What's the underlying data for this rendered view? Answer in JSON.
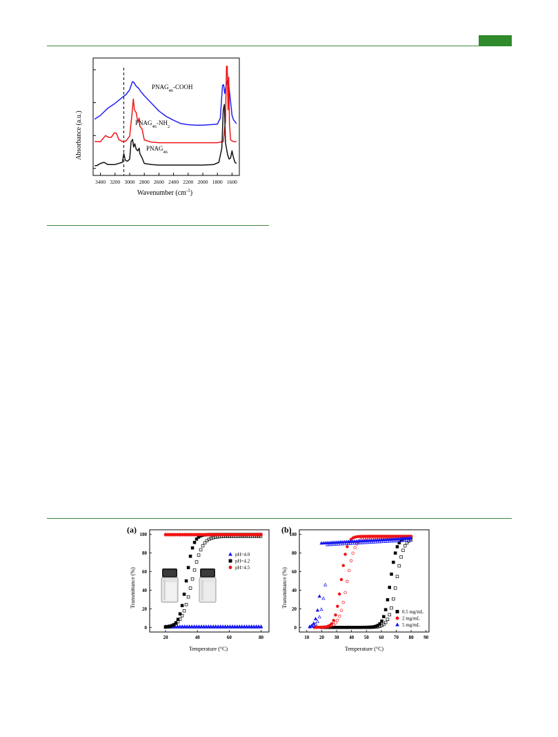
{
  "page": {
    "colors": {
      "rule": "#3e8a38",
      "tab": "#2f8a2c"
    }
  },
  "ftir": {
    "chart_data": {
      "type": "line",
      "xlabel": "Wavenumber (cm⁻¹)",
      "ylabel": "Absorbance (a.u.)",
      "xlim": [
        3500,
        1500
      ],
      "x_reversed": true,
      "xticks": [
        3400,
        3200,
        3000,
        2800,
        2600,
        2400,
        2200,
        2000,
        1800,
        1600
      ],
      "dashed_line_x": 3080,
      "series": [
        {
          "name": "PNAG46-COOH",
          "label_main": "PNAG",
          "label_sub": "46",
          "label_tail": "-COOH",
          "color": "#1f1ff5",
          "points": [
            [
              3480,
              0.93
            ],
            [
              3400,
              1.0
            ],
            [
              3300,
              1.13
            ],
            [
              3200,
              1.22
            ],
            [
              3100,
              1.33
            ],
            [
              3050,
              1.38
            ],
            [
              3000,
              1.47
            ],
            [
              2980,
              1.55
            ],
            [
              2960,
              1.62
            ],
            [
              2940,
              1.6
            ],
            [
              2920,
              1.55
            ],
            [
              2900,
              1.52
            ],
            [
              2880,
              1.5
            ],
            [
              2850,
              1.44
            ],
            [
              2800,
              1.36
            ],
            [
              2700,
              1.22
            ],
            [
              2600,
              1.08
            ],
            [
              2500,
              0.98
            ],
            [
              2400,
              0.91
            ],
            [
              2300,
              0.85
            ],
            [
              2200,
              0.83
            ],
            [
              2100,
              0.82
            ],
            [
              2000,
              0.82
            ],
            [
              1900,
              0.83
            ],
            [
              1800,
              0.84
            ],
            [
              1760,
              0.95
            ],
            [
              1730,
              1.55
            ],
            [
              1715,
              1.56
            ],
            [
              1700,
              1.4
            ],
            [
              1680,
              1.55
            ],
            [
              1660,
              1.65
            ],
            [
              1645,
              1.56
            ],
            [
              1620,
              1.25
            ],
            [
              1600,
              1.0
            ],
            [
              1580,
              0.92
            ],
            [
              1540,
              0.85
            ]
          ]
        },
        {
          "name": "PNAG46-NH2",
          "label_main": "PNAG",
          "label_sub": "46",
          "label_tail": "-NH",
          "label_sub2": "2",
          "color": "#f01414",
          "points": [
            [
              3480,
              0.52
            ],
            [
              3400,
              0.52
            ],
            [
              3330,
              0.63
            ],
            [
              3290,
              0.6
            ],
            [
              3250,
              0.6
            ],
            [
              3210,
              0.68
            ],
            [
              3180,
              0.67
            ],
            [
              3150,
              0.56
            ],
            [
              3100,
              0.52
            ],
            [
              3050,
              0.53
            ],
            [
              3000,
              0.62
            ],
            [
              2970,
              1.0
            ],
            [
              2950,
              1.3
            ],
            [
              2935,
              1.1
            ],
            [
              2910,
              1.05
            ],
            [
              2890,
              0.88
            ],
            [
              2870,
              0.95
            ],
            [
              2860,
              0.8
            ],
            [
              2830,
              0.75
            ],
            [
              2800,
              0.55
            ],
            [
              2700,
              0.51
            ],
            [
              2600,
              0.5
            ],
            [
              2400,
              0.5
            ],
            [
              2200,
              0.5
            ],
            [
              2000,
              0.5
            ],
            [
              1800,
              0.5
            ],
            [
              1720,
              0.52
            ],
            [
              1690,
              0.9
            ],
            [
              1675,
              1.9
            ],
            [
              1665,
              1.9
            ],
            [
              1655,
              1.1
            ],
            [
              1645,
              1.7
            ],
            [
              1635,
              0.85
            ],
            [
              1620,
              0.55
            ],
            [
              1580,
              0.52
            ],
            [
              1540,
              0.52
            ]
          ]
        },
        {
          "name": "PNAG46",
          "label_main": "PNAG",
          "label_sub": "46",
          "label_tail": "",
          "color": "#111111",
          "points": [
            [
              3480,
              0.08
            ],
            [
              3450,
              0.08
            ],
            [
              3400,
              0.12
            ],
            [
              3350,
              0.14
            ],
            [
              3300,
              0.1
            ],
            [
              3200,
              0.1
            ],
            [
              3100,
              0.14
            ],
            [
              3080,
              0.3
            ],
            [
              3060,
              0.18
            ],
            [
              3030,
              0.16
            ],
            [
              3000,
              0.2
            ],
            [
              2980,
              0.52
            ],
            [
              2960,
              0.56
            ],
            [
              2945,
              0.42
            ],
            [
              2930,
              0.48
            ],
            [
              2910,
              0.38
            ],
            [
              2890,
              0.35
            ],
            [
              2870,
              0.4
            ],
            [
              2860,
              0.3
            ],
            [
              2830,
              0.22
            ],
            [
              2800,
              0.12
            ],
            [
              2700,
              0.1
            ],
            [
              2600,
              0.09
            ],
            [
              2400,
              0.09
            ],
            [
              2200,
              0.09
            ],
            [
              2000,
              0.09
            ],
            [
              1850,
              0.1
            ],
            [
              1780,
              0.14
            ],
            [
              1740,
              0.4
            ],
            [
              1720,
              1.1
            ],
            [
              1705,
              1.2
            ],
            [
              1690,
              0.5
            ],
            [
              1660,
              0.28
            ],
            [
              1640,
              0.2
            ],
            [
              1620,
              0.22
            ],
            [
              1600,
              0.35
            ],
            [
              1585,
              0.25
            ],
            [
              1560,
              0.14
            ],
            [
              1540,
              0.12
            ]
          ]
        }
      ]
    }
  },
  "panel_a": {
    "label": "(a)",
    "chart_data": {
      "type": "scatter",
      "xlabel": "Temperature (°C)",
      "ylabel": "Transmittance (%)",
      "xlim": [
        10,
        85
      ],
      "ylim": [
        -5,
        105
      ],
      "xticks": [
        20,
        40,
        60,
        80
      ],
      "yticks": [
        0,
        20,
        40,
        60,
        80,
        100
      ],
      "legend": [
        {
          "name": "pH=4.0",
          "color": "#1515f0",
          "marker": "triangle"
        },
        {
          "name": "pH=4.2",
          "color": "#000000",
          "marker": "square"
        },
        {
          "name": "pH=4.5",
          "color": "#f01414",
          "marker": "circle"
        }
      ],
      "curves": [
        {
          "series": "pH=4.0",
          "filled": true,
          "x_start": 20,
          "x_end": 80,
          "step": 1.5,
          "kind": "flat",
          "value": 1
        },
        {
          "series": "pH=4.0",
          "filled": false,
          "x_start": 20,
          "x_end": 80,
          "step": 1.5,
          "kind": "flat",
          "value": 0.3
        },
        {
          "series": "pH=4.2",
          "filled": true,
          "x_start": 20,
          "x_end": 80,
          "step": 1.3,
          "kind": "sigmoid",
          "mid": 33,
          "width": 2.2,
          "min": 0,
          "max": 100
        },
        {
          "series": "pH=4.2",
          "filled": false,
          "x_start": 20,
          "x_end": 80,
          "step": 1.3,
          "kind": "sigmoid",
          "mid": 36.5,
          "width": 3.2,
          "min": 0,
          "max": 98
        },
        {
          "series": "pH=4.5",
          "filled": true,
          "x_start": 20,
          "x_end": 80,
          "step": 1.5,
          "kind": "flat",
          "value": 100
        },
        {
          "series": "pH=4.5",
          "filled": false,
          "x_start": 20,
          "x_end": 80,
          "step": 1.5,
          "kind": "flat",
          "value": 99.5
        }
      ]
    }
  },
  "panel_b": {
    "label": "(b)",
    "chart_data": {
      "type": "scatter",
      "xlabel": "Temperature (°C)",
      "ylabel": "Transmittance (%)",
      "xlim": [
        5,
        92
      ],
      "ylim": [
        -5,
        105
      ],
      "xticks": [
        10,
        20,
        30,
        40,
        50,
        60,
        70,
        80,
        90
      ],
      "yticks": [
        0,
        20,
        40,
        60,
        80,
        100
      ],
      "legend": [
        {
          "name": "0.5 mg/mL",
          "color": "#000000",
          "marker": "square"
        },
        {
          "name": "2 mg/mL",
          "color": "#f01414",
          "marker": "circle"
        },
        {
          "name": "5 mg/mL",
          "color": "#1515f0",
          "marker": "triangle"
        }
      ],
      "curves": [
        {
          "series": "0.5 mg/mL",
          "filled": true,
          "x_start": 20,
          "x_end": 80,
          "step": 1.3,
          "kind": "sigmoid",
          "mid": 66,
          "width": 2.2,
          "min": 0,
          "max": 97
        },
        {
          "series": "0.5 mg/mL",
          "filled": false,
          "x_start": 20,
          "x_end": 80,
          "step": 1.3,
          "kind": "sigmoid",
          "mid": 70,
          "width": 2.5,
          "min": 0,
          "max": 96
        },
        {
          "series": "2 mg/mL",
          "filled": true,
          "x_start": 15,
          "x_end": 80,
          "step": 1.3,
          "kind": "sigmoid",
          "mid": 33,
          "width": 2.0,
          "min": 0,
          "max": 98
        },
        {
          "series": "2 mg/mL",
          "filled": false,
          "x_start": 15,
          "x_end": 80,
          "step": 1.3,
          "kind": "sigmoid",
          "mid": 37,
          "width": 2.6,
          "min": 0,
          "max": 97
        },
        {
          "series": "5 mg/mL",
          "filled": true,
          "x_start": 12,
          "x_end": 80,
          "step": 1.3,
          "kind": "sigmoid",
          "mid": 19.5,
          "width": 1.6,
          "min": 0,
          "max": 96,
          "slope": 0.09
        },
        {
          "series": "5 mg/mL",
          "filled": false,
          "x_start": 12,
          "x_end": 80,
          "step": 1.3,
          "kind": "sigmoid",
          "mid": 22.5,
          "width": 2.0,
          "min": 0,
          "max": 94,
          "slope": 0.09
        }
      ]
    }
  }
}
